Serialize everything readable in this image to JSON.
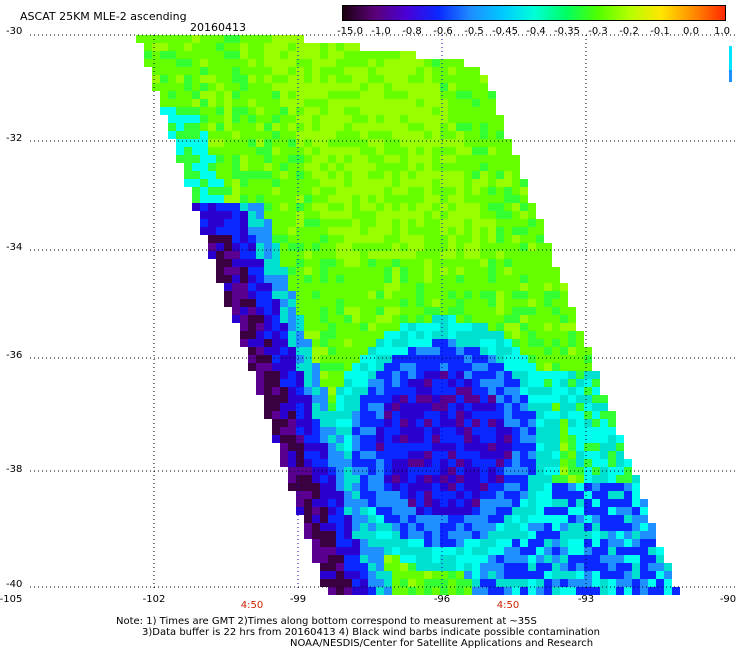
{
  "header": {
    "title": "ASCAT 25KM MLE-2 ascending",
    "date": "20160413"
  },
  "colorbar": {
    "labels": [
      "-15.0",
      "-1.0",
      "-0.8",
      "-0.6",
      "-0.5",
      "-0.45",
      "-0.4",
      "-0.35",
      "-0.3",
      "-0.2",
      "-0.1",
      "0.0",
      "1.0"
    ],
    "colors": [
      "#1a0010",
      "#5a0078",
      "#4a00d8",
      "#0a28ff",
      "#1e8cff",
      "#00c8ff",
      "#00ffd8",
      "#00ff64",
      "#50ff00",
      "#b4ff00",
      "#ffe600",
      "#ff8c00",
      "#ff2800"
    ]
  },
  "axes": {
    "lat_labels": [
      "-30",
      "-32",
      "-34",
      "-36",
      "-38",
      "-40"
    ],
    "lon_labels": [
      "-105",
      "-102",
      "-99",
      "-96",
      "-93",
      "-90"
    ],
    "time_labels": [
      "4:50",
      "4:50"
    ]
  },
  "notes": {
    "line1": "Note: 1) Times are GMT 2)Times along bottom correspond to measurement at ~35S",
    "line2": "3)Data buffer is 22 hrs from 20160413 4) Black wind barbs indicate possible contamination",
    "line3": "NOAA/NESDIS/Center for Satellite Applications and Research"
  },
  "colors": {
    "green": "#66ff00",
    "yellow_green": "#99ff00",
    "bright_green": "#33ff33",
    "cyan": "#00ffee",
    "teal": "#00e0d0",
    "light_blue": "#1e90ff",
    "blue": "#0a28ff",
    "dark_blue": "#2a00d0",
    "purple": "#5a0090",
    "dark_purple": "#3a0040"
  }
}
